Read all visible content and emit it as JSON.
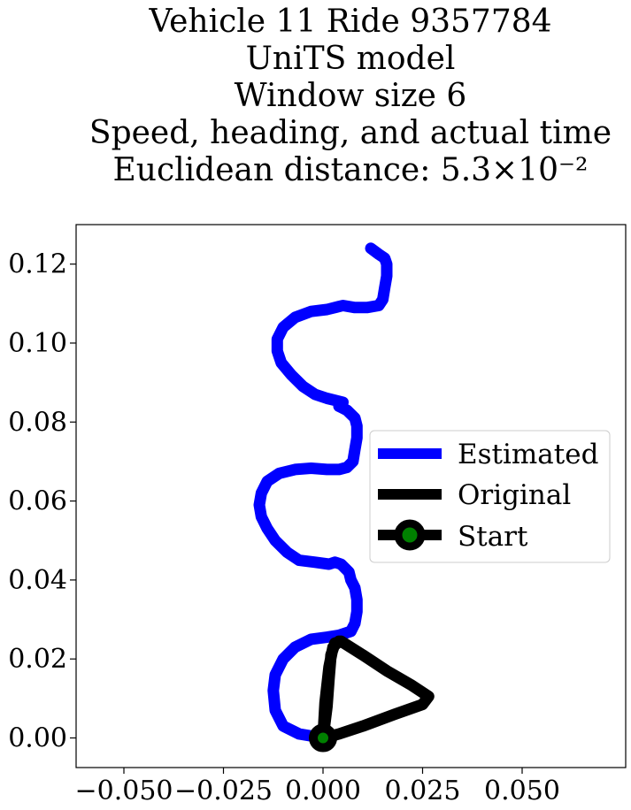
{
  "chart_data": {
    "type": "line",
    "title_lines": [
      "Vehicle 11 Ride 9357784",
      "UniTS model",
      "Window size 6",
      "Speed, heading, and actual time",
      "Euclidean distance: 5.3×10⁻²"
    ],
    "xlabel": "",
    "ylabel": "",
    "xlim": [
      -0.062,
      0.076
    ],
    "ylim": [
      -0.0075,
      0.13
    ],
    "x_ticks": [
      -0.05,
      -0.025,
      0.0,
      0.025,
      0.05
    ],
    "x_tick_labels": [
      "−0.050",
      "−0.025",
      "0.000",
      "0.025",
      "0.050"
    ],
    "y_ticks": [
      0.0,
      0.02,
      0.04,
      0.06,
      0.08,
      0.1,
      0.12
    ],
    "y_tick_labels": [
      "0.00",
      "0.02",
      "0.04",
      "0.06",
      "0.08",
      "0.10",
      "0.12"
    ],
    "grid": false,
    "legend": {
      "placement": "center-right",
      "entries": [
        {
          "label": "Estimated",
          "color": "#0000ff"
        },
        {
          "label": "Original",
          "color": "#000000"
        },
        {
          "label": "Start",
          "color": "#000000",
          "marker_color": "#008000"
        }
      ]
    },
    "series": [
      {
        "name": "Estimated",
        "color": "#0000ff",
        "points": [
          [
            0.0,
            0.0
          ],
          [
            -0.006,
            0.001
          ],
          [
            -0.01,
            0.003
          ],
          [
            -0.012,
            0.007
          ],
          [
            -0.0125,
            0.012
          ],
          [
            -0.012,
            0.016
          ],
          [
            -0.01,
            0.02
          ],
          [
            -0.007,
            0.023
          ],
          [
            -0.003,
            0.025
          ],
          [
            0.001,
            0.0255
          ],
          [
            0.004,
            0.026
          ],
          [
            0.007,
            0.027
          ],
          [
            0.008,
            0.029
          ],
          [
            0.0085,
            0.032
          ],
          [
            0.0085,
            0.035
          ],
          [
            0.008,
            0.038
          ],
          [
            0.007,
            0.04
          ],
          [
            0.0065,
            0.042
          ],
          [
            0.0055,
            0.043
          ],
          [
            0.0045,
            0.044
          ],
          [
            0.003,
            0.0445
          ],
          [
            0.0015,
            0.044
          ],
          [
            -0.002,
            0.0445
          ],
          [
            -0.006,
            0.045
          ],
          [
            -0.009,
            0.047
          ],
          [
            -0.012,
            0.05
          ],
          [
            -0.014,
            0.053
          ],
          [
            -0.0155,
            0.056
          ],
          [
            -0.016,
            0.059
          ],
          [
            -0.0155,
            0.062
          ],
          [
            -0.014,
            0.065
          ],
          [
            -0.011,
            0.067
          ],
          [
            -0.007,
            0.068
          ],
          [
            -0.003,
            0.0683
          ],
          [
            0.001,
            0.068
          ],
          [
            0.004,
            0.068
          ],
          [
            0.006,
            0.0685
          ],
          [
            0.0075,
            0.07
          ],
          [
            0.008,
            0.073
          ],
          [
            0.0085,
            0.076
          ],
          [
            0.0085,
            0.079
          ],
          [
            0.008,
            0.081
          ],
          [
            0.006,
            0.083
          ],
          [
            0.004,
            0.084
          ],
          [
            0.005,
            0.085
          ],
          [
            0.003,
            0.0855
          ],
          [
            0.001,
            0.086
          ],
          [
            -0.002,
            0.087
          ],
          [
            -0.005,
            0.089
          ],
          [
            -0.008,
            0.092
          ],
          [
            -0.0105,
            0.095
          ],
          [
            -0.0115,
            0.098
          ],
          [
            -0.0115,
            0.101
          ],
          [
            -0.01,
            0.104
          ],
          [
            -0.007,
            0.1065
          ],
          [
            -0.003,
            0.108
          ],
          [
            0.001,
            0.1085
          ],
          [
            0.005,
            0.1095
          ],
          [
            0.008,
            0.109
          ],
          [
            0.011,
            0.109
          ],
          [
            0.014,
            0.1095
          ],
          [
            0.015,
            0.111
          ],
          [
            0.0155,
            0.114
          ],
          [
            0.016,
            0.117
          ],
          [
            0.016,
            0.12
          ],
          [
            0.0155,
            0.1215
          ],
          [
            0.014,
            0.1225
          ],
          [
            0.012,
            0.124
          ]
        ]
      },
      {
        "name": "Original",
        "color": "#000000",
        "points": [
          [
            0.0,
            0.0
          ],
          [
            0.001,
            0.008
          ],
          [
            0.0015,
            0.015
          ],
          [
            0.002,
            0.021
          ],
          [
            0.003,
            0.024
          ],
          [
            0.0045,
            0.0245
          ],
          [
            0.01,
            0.021
          ],
          [
            0.016,
            0.017
          ],
          [
            0.022,
            0.0135
          ],
          [
            0.0265,
            0.0105
          ],
          [
            0.025,
            0.0085
          ],
          [
            0.018,
            0.006
          ],
          [
            0.01,
            0.003
          ],
          [
            0.004,
            0.001
          ],
          [
            0.0,
            0.0
          ],
          [
            0.0005,
            0.009
          ],
          [
            0.0015,
            0.018
          ],
          [
            0.0025,
            0.023
          ],
          [
            0.004,
            0.0245
          ]
        ]
      }
    ],
    "start_point": {
      "label": "Start",
      "x": 0.0,
      "y": 0.0,
      "edge_color": "#000000",
      "face_color": "#008000"
    }
  }
}
